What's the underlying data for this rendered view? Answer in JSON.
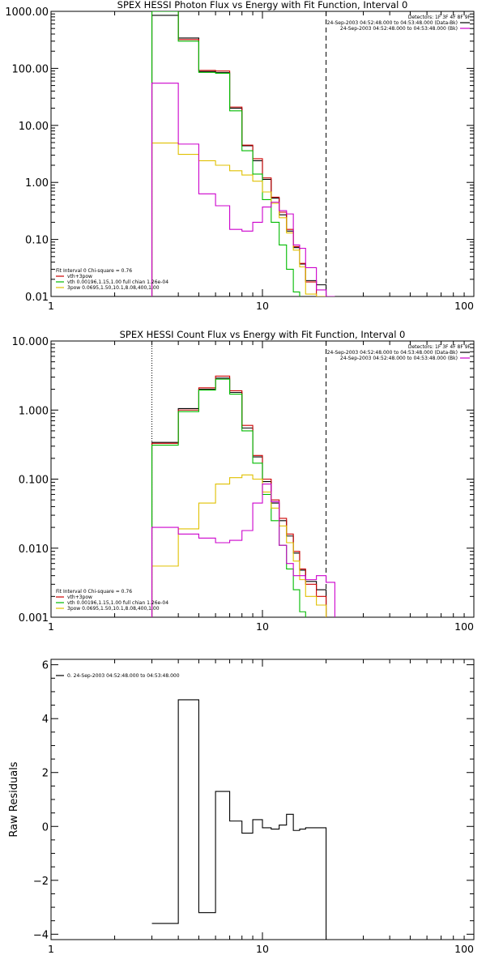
{
  "chart_data": [
    {
      "type": "line",
      "title": "SPEX HESSI Photon Flux vs Energy with Fit Function, Interval 0",
      "xlabel": "",
      "ylabel": "",
      "xscale": "log",
      "yscale": "log",
      "xlim": [
        1,
        100
      ],
      "ylim": [
        0.01,
        1000
      ],
      "x_ticks": [
        "1",
        "10",
        "100"
      ],
      "y_ticks": [
        "0.01",
        "0.10",
        "1.00",
        "10.00",
        "100.00",
        "1000.00"
      ],
      "y_tick_values": [
        0.01,
        0.1,
        1,
        10,
        100,
        1000
      ],
      "vlines": [
        {
          "x": 3,
          "style": "dotted",
          "color": "#f5a000"
        },
        {
          "x": 20,
          "style": "dashed",
          "color": "#000000"
        }
      ],
      "header_lines": [
        {
          "text": "Detectors: 1F 3F 4F 8F 9F",
          "color": "#000000",
          "line": false
        },
        {
          "text": "24-Sep-2003 04:52:48.000 to 04:53:48.000 (Data-Bk)",
          "color": "#000000",
          "line": true
        },
        {
          "text": "24-Sep-2003 04:52:48.000 to 04:53:48.000 (Bk)",
          "color": "#cc00cc",
          "line": true
        }
      ],
      "legend": {
        "placement": "bottom-left",
        "header": "Fit Interval 0   Chi-square = 0.76",
        "entries": [
          {
            "text": "vth+3pow",
            "color": "#cc0000"
          },
          {
            "text": "vth 0.00196,1.15,1.00  full chian 1.26e-04",
            "color": "#00bb00"
          },
          {
            "text": "3pow 0.0695,1.50,10.1,8.08,400,1.00",
            "color": "#e0c000"
          }
        ]
      },
      "bin_edges": [
        3,
        4,
        5,
        6,
        7,
        8,
        9,
        10,
        11,
        12,
        13,
        14,
        15,
        16,
        18,
        20,
        22
      ],
      "series": [
        {
          "name": "Data-Bk",
          "color": "#000000",
          "values": [
            850,
            340,
            88,
            85,
            20,
            4.4,
            2.4,
            1.13,
            0.53,
            0.27,
            0.14,
            0.072,
            0.037,
            0.019,
            0.016,
            null
          ]
        },
        {
          "name": "vth+3pow",
          "color": "#cc0000",
          "values": [
            1000,
            320,
            92,
            90,
            21,
            4.5,
            2.6,
            1.2,
            0.55,
            0.3,
            0.15,
            0.075,
            0.038,
            0.018,
            null,
            null
          ]
        },
        {
          "name": "vth",
          "color": "#00bb00",
          "values": [
            1000,
            300,
            85,
            82,
            18,
            3.6,
            1.4,
            0.5,
            0.2,
            0.08,
            0.03,
            0.012,
            null,
            null,
            null,
            null
          ]
        },
        {
          "name": "3pow",
          "color": "#e0c000",
          "values": [
            4.9,
            3.1,
            2.4,
            2.0,
            1.6,
            1.35,
            1.05,
            0.68,
            0.43,
            0.24,
            0.13,
            0.065,
            0.033,
            0.011,
            0.008,
            null
          ]
        },
        {
          "name": "Bk",
          "color": "#cc00cc",
          "values": [
            55,
            4.7,
            0.63,
            0.39,
            0.15,
            0.14,
            0.2,
            0.37,
            0.45,
            0.32,
            0.28,
            0.08,
            0.07,
            0.032,
            0.013,
            0.007
          ]
        }
      ]
    },
    {
      "type": "line",
      "title": "SPEX HESSI Count Flux vs Energy with Fit Function, Interval 0",
      "xlabel": "",
      "ylabel": "",
      "xscale": "log",
      "yscale": "log",
      "xlim": [
        1,
        100
      ],
      "ylim": [
        0.001,
        10
      ],
      "x_ticks": [
        "1",
        "10",
        "100"
      ],
      "y_ticks": [
        "0.001",
        "0.010",
        "0.100",
        "1.000",
        "10.000"
      ],
      "y_tick_values": [
        0.001,
        0.01,
        0.1,
        1,
        10
      ],
      "vlines": [
        {
          "x": 3,
          "style": "dotted",
          "color": "#000000"
        },
        {
          "x": 20,
          "style": "dashed",
          "color": "#000000"
        }
      ],
      "header_lines": [
        {
          "text": "Detectors: 1F 3F 4F 8F 9F",
          "color": "#000000",
          "line": false
        },
        {
          "text": "24-Sep-2003 04:52:48.000 to 04:53:48.000 (Data-Bk)",
          "color": "#000000",
          "line": true
        },
        {
          "text": "24-Sep-2003 04:52:48.000 to 04:53:48.000 (Bk)",
          "color": "#cc00cc",
          "line": true
        }
      ],
      "legend": {
        "placement": "bottom-left",
        "header": "Fit Interval 0   Chi-square = 0.76",
        "entries": [
          {
            "text": "vth+3pow",
            "color": "#cc0000"
          },
          {
            "text": "vth 0.00196,1.15,1.00  full chian 1.26e-04",
            "color": "#00bb00"
          },
          {
            "text": "3pow 0.0695,1.50,10.1,8.08,400,1.00",
            "color": "#e0c000"
          }
        ]
      },
      "bin_edges": [
        3,
        4,
        5,
        6,
        7,
        8,
        9,
        10,
        11,
        12,
        13,
        14,
        15,
        16,
        18,
        20,
        22
      ],
      "series": [
        {
          "name": "Data-Bk",
          "color": "#000000",
          "values": [
            0.34,
            1.05,
            2.0,
            2.9,
            1.8,
            0.55,
            0.21,
            0.092,
            0.045,
            0.025,
            0.015,
            0.0085,
            0.0048,
            0.0033,
            0.0025,
            null
          ]
        },
        {
          "name": "vth+3pow",
          "color": "#cc0000",
          "values": [
            0.33,
            1.0,
            2.1,
            3.1,
            1.9,
            0.6,
            0.22,
            0.1,
            0.05,
            0.027,
            0.016,
            0.009,
            0.005,
            0.003,
            0.002,
            null
          ]
        },
        {
          "name": "vth",
          "color": "#00bb00",
          "values": [
            0.31,
            0.95,
            1.95,
            2.8,
            1.7,
            0.5,
            0.17,
            0.06,
            0.025,
            0.011,
            0.005,
            0.0025,
            0.0012,
            null,
            null,
            null
          ]
        },
        {
          "name": "3pow",
          "color": "#e0c000",
          "values": [
            0.0055,
            0.019,
            0.045,
            0.085,
            0.105,
            0.115,
            0.1,
            0.065,
            0.038,
            0.021,
            0.012,
            0.0065,
            0.0035,
            0.002,
            0.0015,
            null
          ]
        },
        {
          "name": "Bk",
          "color": "#cc00cc",
          "values": [
            0.02,
            0.016,
            0.014,
            0.012,
            0.013,
            0.018,
            0.045,
            0.085,
            0.047,
            0.011,
            0.006,
            0.004,
            0.004,
            0.0035,
            0.004,
            0.0032
          ]
        }
      ]
    },
    {
      "type": "line",
      "title": "",
      "xlabel": "",
      "ylabel": "Raw Residuals",
      "xscale": "log",
      "yscale": "linear",
      "xlim": [
        1,
        100
      ],
      "ylim": [
        -4.2,
        6.2
      ],
      "x_ticks": [
        "1",
        "10",
        "100"
      ],
      "y_ticks": [
        "−4",
        "−2",
        "0",
        "2",
        "4",
        "6"
      ],
      "y_tick_values": [
        -4,
        -2,
        0,
        2,
        4,
        6
      ],
      "vlines": [],
      "legend": {
        "placement": "top-left",
        "entries": [
          {
            "text": "0. 24-Sep-2003 04:52:48.000 to 04:53:48.000",
            "color": "#000000"
          }
        ]
      },
      "bin_edges": [
        3,
        4,
        5,
        6,
        7,
        8,
        9,
        10,
        11,
        12,
        13,
        14,
        15,
        16,
        18,
        20
      ],
      "series": [
        {
          "name": "0. 24-Sep-2003 04:52:48.000 to 04:53:48.000",
          "color": "#000000",
          "values": [
            -3.6,
            4.7,
            -3.2,
            1.3,
            0.2,
            -0.25,
            0.25,
            -0.05,
            -0.1,
            0.05,
            0.45,
            -0.15,
            -0.1,
            -0.05,
            -0.05
          ],
          "final_drop": -4.2
        }
      ]
    }
  ]
}
